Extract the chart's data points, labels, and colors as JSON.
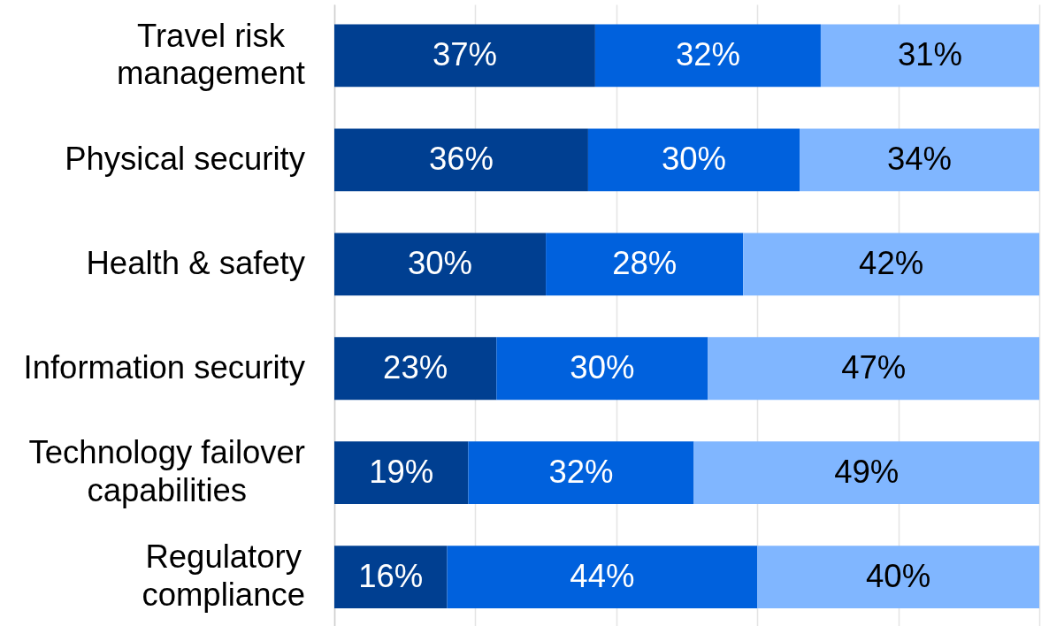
{
  "chart_data": {
    "type": "bar",
    "orientation": "horizontal",
    "stacked": true,
    "categories": [
      "Travel risk management",
      "Physical security",
      "Health & safety",
      "Information security",
      "Technology failover capabilities",
      "Regulatory compliance"
    ],
    "series": [
      {
        "color": "#003f91",
        "values": [
          37,
          36,
          30,
          23,
          19,
          16
        ],
        "value_labels": [
          "37%",
          "36%",
          "30%",
          "23%",
          "19%",
          "16%"
        ]
      },
      {
        "color": "#0061dd",
        "values": [
          32,
          30,
          28,
          30,
          32,
          44
        ],
        "value_labels": [
          "32%",
          "30%",
          "28%",
          "30%",
          "32%",
          "44%"
        ]
      },
      {
        "color": "#80b6ff",
        "values": [
          31,
          34,
          42,
          47,
          49,
          40
        ],
        "value_labels": [
          "31%",
          "34%",
          "42%",
          "47%",
          "49%",
          "40%"
        ]
      }
    ],
    "xlim": [
      0,
      100
    ],
    "xticks": [
      {
        "value": 0,
        "label": null
      },
      {
        "value": 20,
        "label": null
      },
      {
        "value": 40,
        "label": null
      },
      {
        "value": 60,
        "label": null
      },
      {
        "value": 80,
        "label": null
      },
      {
        "value": 100,
        "label": null
      }
    ],
    "grid": "x",
    "tick_labels": "y"
  }
}
